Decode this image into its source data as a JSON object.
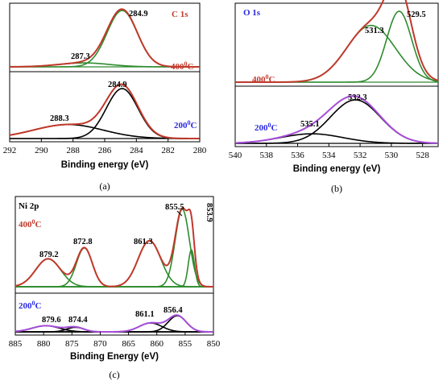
{
  "chart_data": [
    {
      "id": "a",
      "type": "line",
      "caption": "(a)",
      "panel_title": "C 1s",
      "xlabel": "Binding energy (eV)",
      "ylabel": "",
      "x_reversed": true,
      "xlim": [
        292,
        280
      ],
      "xticks": [
        292,
        290,
        288,
        286,
        284,
        282,
        280
      ],
      "grid": false,
      "spectra": [
        {
          "temperature_label": "400°C",
          "temp_base": "400",
          "temp_sup": "0",
          "temp_suffix": "C",
          "colors": {
            "envelope": "#c0392b",
            "component": "#2e8b2e",
            "baseline": "#2e8b2e"
          },
          "components": [
            {
              "center": 284.9,
              "height": 1.0,
              "width": 0.95,
              "label": "284.9"
            },
            {
              "center": 287.3,
              "height": 0.07,
              "width": 1.6,
              "label": "287.3"
            }
          ]
        },
        {
          "temperature_label": "200°C",
          "temp_base": "200",
          "temp_sup": "0",
          "temp_suffix": "C",
          "colors": {
            "envelope": "#c0392b",
            "component": "#000000",
            "baseline": "#000000"
          },
          "components": [
            {
              "center": 284.9,
              "height": 1.0,
              "width": 1.0,
              "label": "284.9"
            },
            {
              "center": 288.3,
              "height": 0.28,
              "width": 2.2,
              "label": "288.3"
            }
          ]
        }
      ]
    },
    {
      "id": "b",
      "type": "line",
      "caption": "(b)",
      "panel_title": "O 1s",
      "xlabel": "Binding energy (eV)",
      "ylabel": "",
      "x_reversed": true,
      "xlim": [
        540,
        527
      ],
      "xticks": [
        540,
        538,
        536,
        534,
        532,
        530,
        528
      ],
      "grid": false,
      "spectra": [
        {
          "temperature_label": "400°C",
          "temp_base": "400",
          "temp_sup": "0",
          "temp_suffix": "C",
          "colors": {
            "envelope": "#c0392b",
            "component": "#2e8b2e",
            "baseline": "#2e8b2e"
          },
          "components": [
            {
              "center": 529.5,
              "height": 1.0,
              "width": 0.8,
              "label": "529.5"
            },
            {
              "center": 531.3,
              "height": 0.8,
              "width": 1.55,
              "label": "531.3"
            }
          ]
        },
        {
          "temperature_label": "200°C",
          "temp_base": "200",
          "temp_sup": "0",
          "temp_suffix": "C",
          "colors": {
            "envelope": "#a64dd9",
            "component": "#000000",
            "baseline": "#000000"
          },
          "components": [
            {
              "center": 532.3,
              "height": 1.0,
              "width": 1.6,
              "label": "532.3"
            },
            {
              "center": 535.1,
              "height": 0.22,
              "width": 2.0,
              "label": "535.1"
            }
          ]
        }
      ]
    },
    {
      "id": "c",
      "type": "line",
      "caption": "(c)",
      "panel_title": "Ni 2p",
      "xlabel": "Binding Energy (eV)",
      "ylabel": "",
      "x_reversed": true,
      "xlim": [
        885,
        850
      ],
      "xticks": [
        885,
        880,
        875,
        870,
        865,
        860,
        855,
        850
      ],
      "grid": false,
      "spectra": [
        {
          "temperature_label": "400°C",
          "temp_base": "400",
          "temp_sup": "0",
          "temp_suffix": "C",
          "colors": {
            "envelope": "#c0392b",
            "component": "#2e8b2e",
            "baseline": "#2e8b2e"
          },
          "components": [
            {
              "center": 879.2,
              "height": 0.31,
              "width": 2.2,
              "label": "879.2"
            },
            {
              "center": 872.8,
              "height": 0.43,
              "width": 1.4,
              "label": "872.8"
            },
            {
              "center": 861.3,
              "height": 0.51,
              "width": 2.0,
              "label": "861.3"
            },
            {
              "center": 855.5,
              "height": 0.86,
              "width": 1.25,
              "label": "855.5"
            },
            {
              "center": 853.9,
              "height": 0.41,
              "width": 0.55,
              "label": "853.9"
            }
          ]
        },
        {
          "temperature_label": "200°C",
          "temp_base": "200",
          "temp_sup": "0",
          "temp_suffix": "C",
          "colors": {
            "envelope": "#a64dd9",
            "component": "#000000",
            "baseline": "#000000"
          },
          "components": [
            {
              "center": 879.6,
              "height": 0.38,
              "width": 2.4,
              "label": "879.6"
            },
            {
              "center": 874.4,
              "height": 0.28,
              "width": 1.5,
              "label": "874.4"
            },
            {
              "center": 861.1,
              "height": 0.55,
              "width": 2.0,
              "label": "861.1"
            },
            {
              "center": 856.4,
              "height": 1.0,
              "width": 1.6,
              "label": "856.4"
            }
          ]
        }
      ]
    }
  ]
}
